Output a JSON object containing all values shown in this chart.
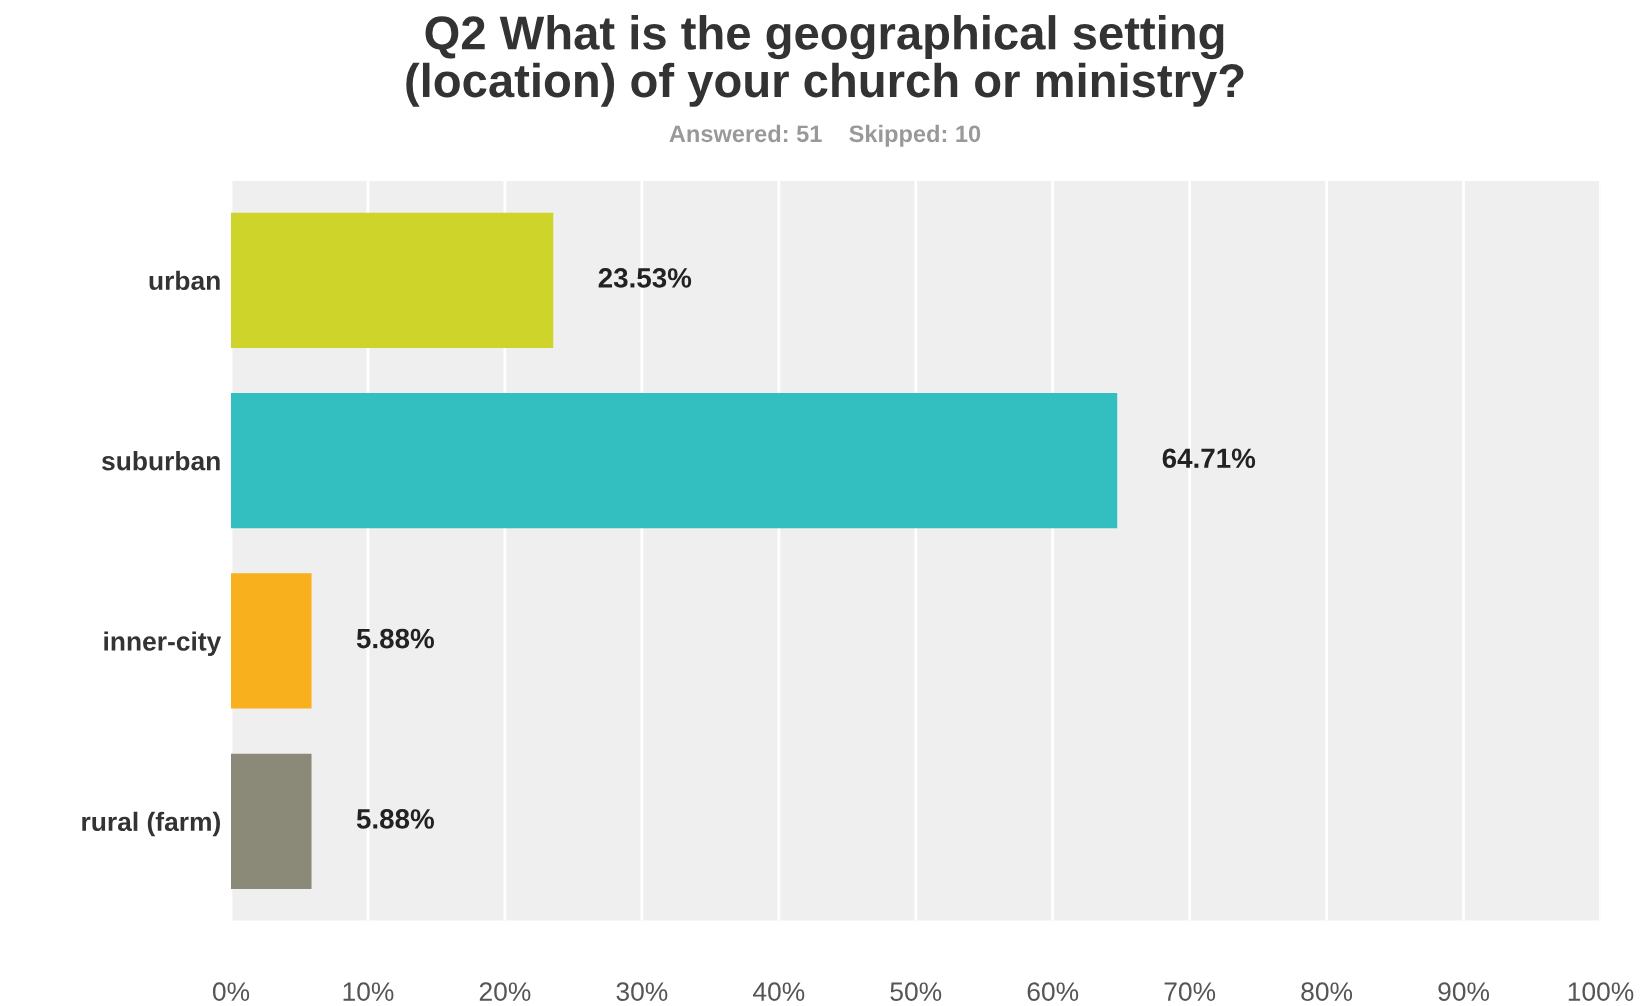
{
  "chart_data": {
    "type": "bar",
    "orientation": "horizontal",
    "title": "Q2 What is the geographical setting\n(location) of your church or ministry?",
    "subtitle": "Answered: 51    Skipped: 10",
    "categories": [
      "urban",
      "suburban",
      "inner-city",
      "rural (farm)"
    ],
    "values": [
      23.53,
      64.71,
      5.88,
      5.88
    ],
    "colors": [
      "#cfd42b",
      "#33bec0",
      "#f8b01c",
      "#8b8a79"
    ],
    "value_labels": [
      "23.53%",
      "64.71%",
      "5.88%",
      "5.88%"
    ],
    "xlim": [
      0,
      100
    ],
    "xticks": [
      {
        "value": 0,
        "label": "0%"
      },
      {
        "value": 10,
        "label": "10%"
      },
      {
        "value": 20,
        "label": "20%"
      },
      {
        "value": 30,
        "label": "30%"
      },
      {
        "value": 40,
        "label": "40%"
      },
      {
        "value": 50,
        "label": "50%"
      },
      {
        "value": 60,
        "label": "60%"
      },
      {
        "value": 70,
        "label": "70%"
      },
      {
        "value": 80,
        "label": "80%"
      },
      {
        "value": 90,
        "label": "90%"
      },
      {
        "value": 100,
        "label": "100%"
      }
    ],
    "grid": "x"
  }
}
